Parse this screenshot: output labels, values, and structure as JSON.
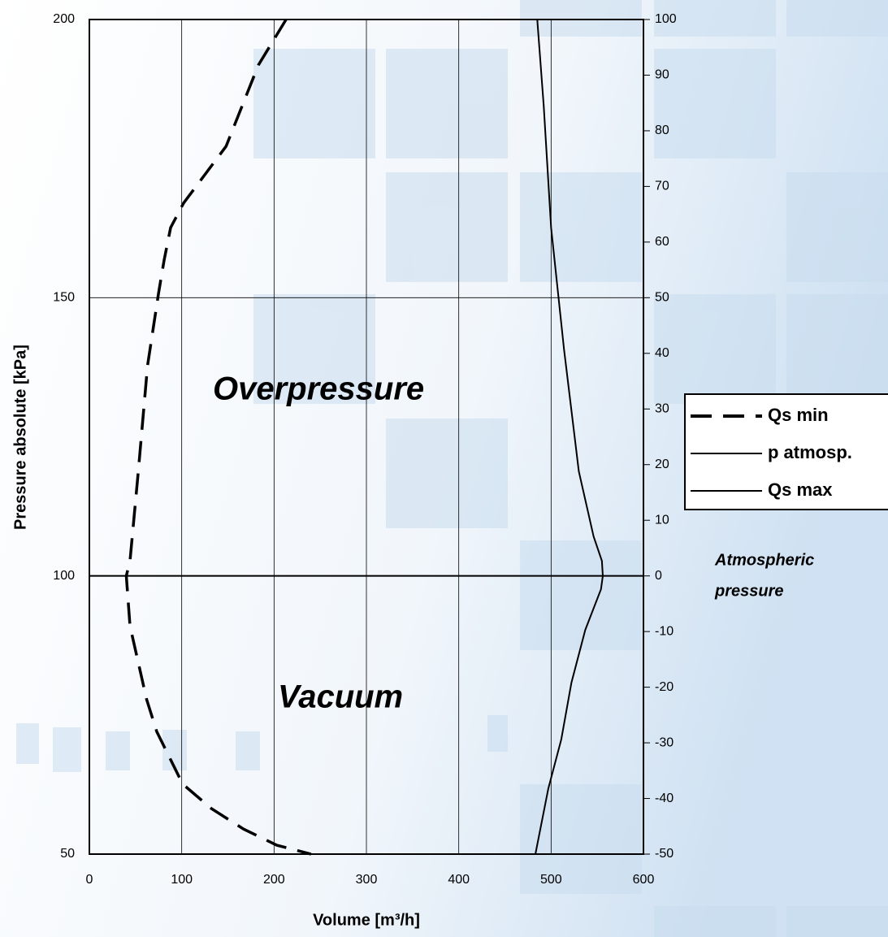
{
  "chart_data": {
    "type": "line",
    "xlabel": "Volume [m³/h]",
    "ylabel": "Pressure absolute [kPa]",
    "annotations": [
      "Overpressure",
      "Vacuum",
      "Atmospheric",
      "pressure"
    ],
    "xlim": [
      0,
      600
    ],
    "xticks": [
      0,
      100,
      200,
      300,
      400,
      500,
      600
    ],
    "ylim": [
      50,
      200
    ],
    "yticks": [
      50,
      100,
      150,
      200
    ],
    "y2lim": [
      -50,
      100
    ],
    "y2ticks": [
      -50,
      -40,
      -30,
      -20,
      -10,
      0,
      10,
      20,
      30,
      40,
      50,
      60,
      70,
      80,
      90,
      100
    ],
    "grid": true,
    "legend": "right",
    "series": [
      {
        "name": "Qs min",
        "color": "#000000",
        "dash": true,
        "x": [
          213,
          183,
          148,
          102,
          88,
          81,
          75,
          63,
          53,
          44,
          40,
          44,
          62,
          73,
          101,
          132,
          167,
          203,
          240
        ],
        "values": [
          200,
          191.8,
          177.2,
          167,
          162.6,
          156.8,
          150.9,
          137.8,
          118.8,
          102.7,
          100,
          91,
          77.8,
          72,
          62.6,
          58.2,
          54.5,
          51.6,
          50
        ]
      },
      {
        "name": "p atmosp.",
        "color": "#000000",
        "dash": false,
        "x": [
          0,
          600
        ],
        "values": [
          100,
          100
        ]
      },
      {
        "name": "Qs max",
        "color": "#000000",
        "dash": false,
        "x": [
          485,
          492,
          500,
          514,
          530,
          546,
          555,
          556,
          554,
          537,
          522,
          511,
          497,
          483
        ],
        "values": [
          200,
          184.5,
          162.6,
          140.7,
          118.8,
          107.1,
          102.7,
          100,
          97.6,
          90.3,
          80.8,
          70.6,
          61.8,
          50
        ]
      }
    ]
  }
}
